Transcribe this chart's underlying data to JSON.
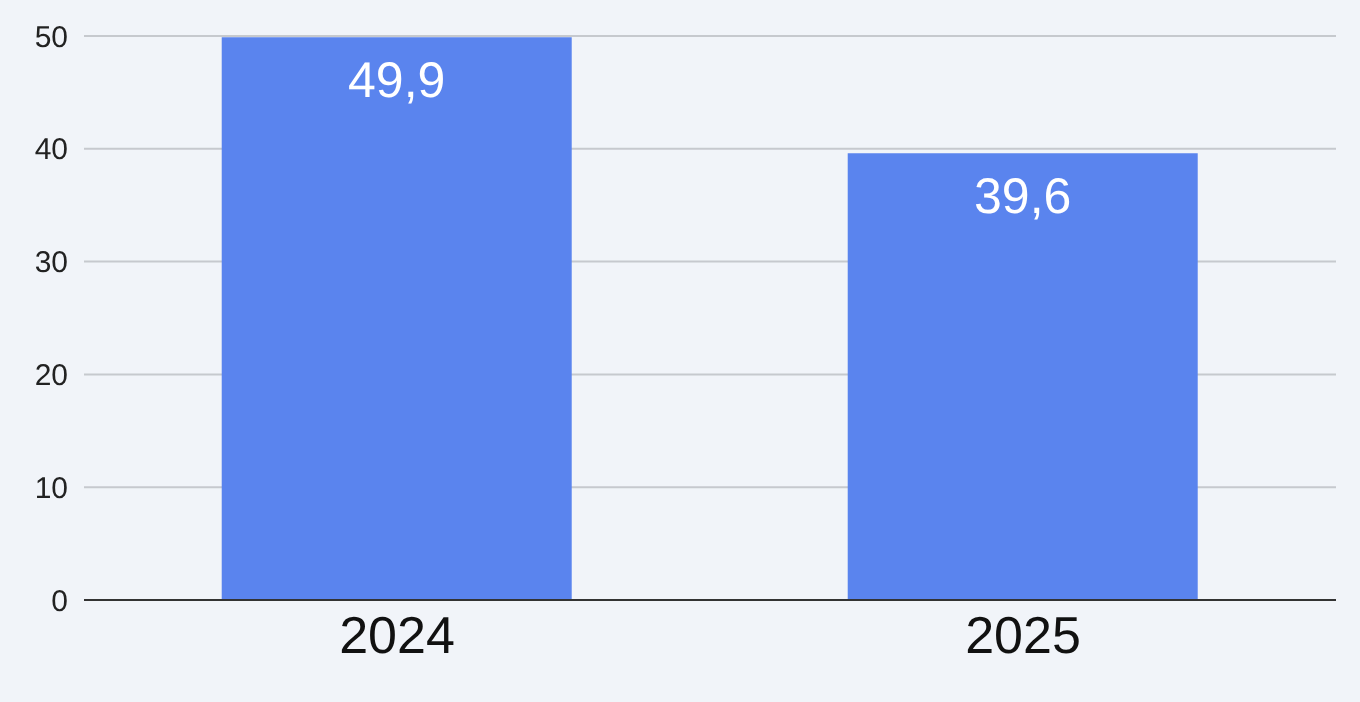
{
  "chart_data": {
    "type": "bar",
    "categories": [
      "2024",
      "2025"
    ],
    "values": [
      49.9,
      39.6
    ],
    "value_labels": [
      "49,9",
      "39,6"
    ],
    "color": "#5a84ee",
    "ylim": [
      0,
      50
    ],
    "yticks": [
      0,
      10,
      20,
      30,
      40,
      50
    ],
    "grid": "y"
  }
}
